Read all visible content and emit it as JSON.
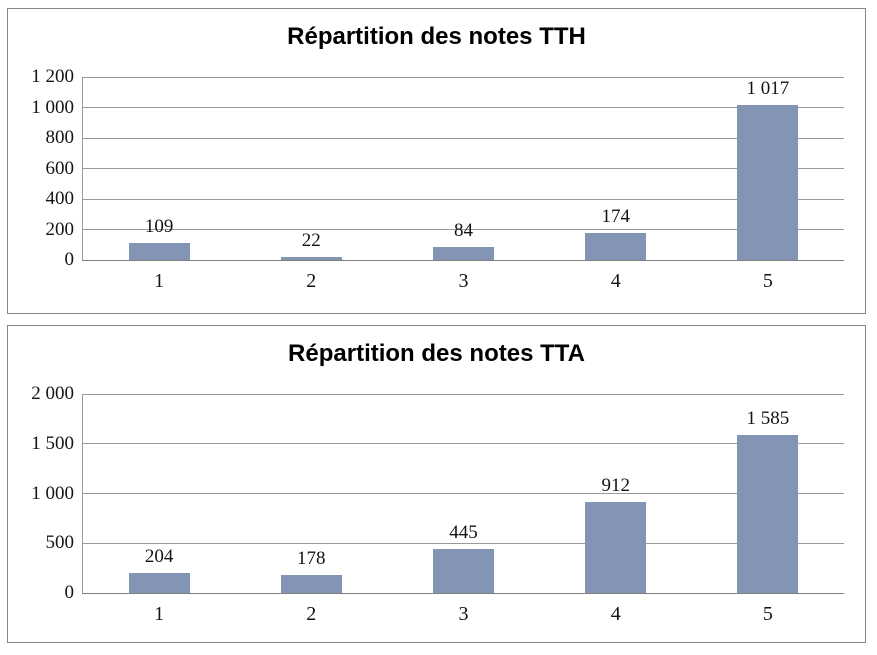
{
  "colors": {
    "bar": "#8494B4",
    "gridline": "#9A9A9A",
    "axis": "#7F7F7F",
    "frame_border": "#848484",
    "text": "#141414",
    "background": "#FFFFFF"
  },
  "chart_data": [
    {
      "type": "bar",
      "title": "Répartition des notes TTH",
      "categories": [
        "1",
        "2",
        "3",
        "4",
        "5"
      ],
      "values": [
        109,
        22,
        84,
        174,
        1017
      ],
      "value_labels": [
        "109",
        "22",
        "84",
        "174",
        "1 017"
      ],
      "xlabel": "",
      "ylabel": "",
      "ylim": [
        0,
        1200
      ],
      "yticks": [
        0,
        200,
        400,
        600,
        800,
        1000,
        1200
      ],
      "ytick_labels": [
        "0",
        "200",
        "400",
        "600",
        "800",
        "1 000",
        "1 200"
      ],
      "grid": "horizontal",
      "legend": "none",
      "bar_color": "#8494B4"
    },
    {
      "type": "bar",
      "title": "Répartition des notes TTA",
      "categories": [
        "1",
        "2",
        "3",
        "4",
        "5"
      ],
      "values": [
        204,
        178,
        445,
        912,
        1585
      ],
      "value_labels": [
        "204",
        "178",
        "445",
        "912",
        "1 585"
      ],
      "xlabel": "",
      "ylabel": "",
      "ylim": [
        0,
        2000
      ],
      "yticks": [
        0,
        500,
        1000,
        1500,
        2000
      ],
      "ytick_labels": [
        "0",
        "500",
        "1 000",
        "1 500",
        "2 000"
      ],
      "grid": "horizontal",
      "legend": "none",
      "bar_color": "#8494B4"
    }
  ]
}
